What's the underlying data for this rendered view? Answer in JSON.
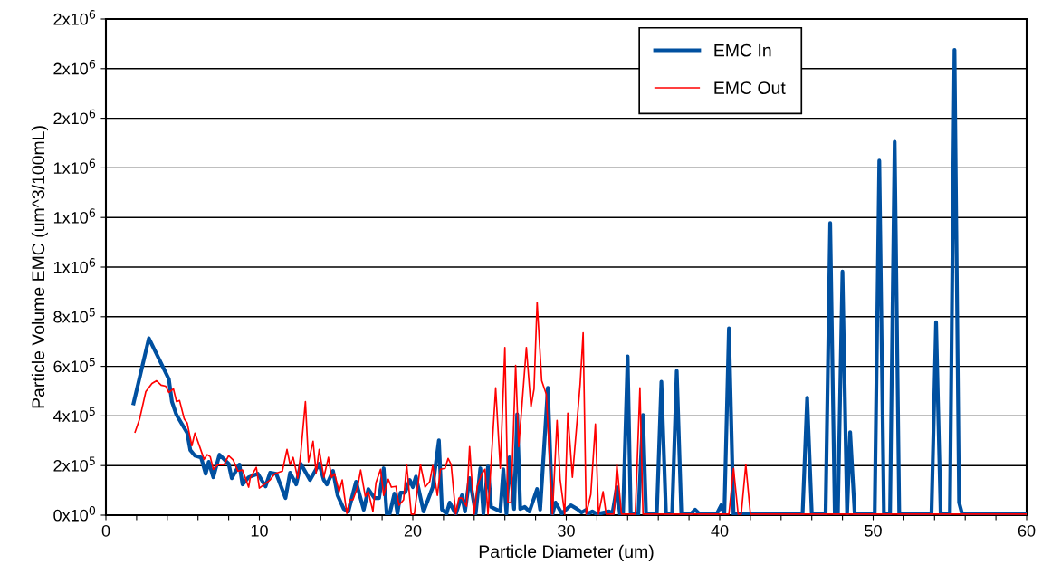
{
  "chart_data": {
    "type": "line",
    "xlabel": "Particle Diameter (um)",
    "ylabel": "Particle Volume EMC (um^3/100mL)",
    "xlim": [
      0,
      60
    ],
    "ylim": [
      0,
      2000000
    ],
    "xticks": [
      0,
      {
        "value": 2,
        "label": null
      },
      {
        "value": 4,
        "label": null
      },
      {
        "value": 6,
        "label": null
      },
      {
        "value": 8,
        "label": null
      },
      10,
      {
        "value": 12,
        "label": null
      },
      {
        "value": 14,
        "label": null
      },
      {
        "value": 16,
        "label": null
      },
      {
        "value": 18,
        "label": null
      },
      20,
      {
        "value": 22,
        "label": null
      },
      {
        "value": 24,
        "label": null
      },
      {
        "value": 26,
        "label": null
      },
      {
        "value": 28,
        "label": null
      },
      30,
      {
        "value": 32,
        "label": null
      },
      {
        "value": 34,
        "label": null
      },
      {
        "value": 36,
        "label": null
      },
      {
        "value": 38,
        "label": null
      },
      40,
      {
        "value": 42,
        "label": null
      },
      {
        "value": 44,
        "label": null
      },
      {
        "value": 46,
        "label": null
      },
      {
        "value": 48,
        "label": null
      },
      50,
      {
        "value": 52,
        "label": null
      },
      {
        "value": 54,
        "label": null
      },
      {
        "value": 56,
        "label": null
      },
      {
        "value": 58,
        "label": null
      },
      60
    ],
    "yticks": [
      {
        "value": 0,
        "label": "0x10$^{0}$"
      },
      {
        "value": 200000,
        "label": "2x10$^{5}$"
      },
      {
        "value": 400000,
        "label": "4x10$^{5}$"
      },
      {
        "value": 600000,
        "label": "6x10$^{5}$"
      },
      {
        "value": 800000,
        "label": "8x10$^{5}$"
      },
      {
        "value": 1000000,
        "label": "1x10$^{6}$"
      },
      {
        "value": 1200000,
        "label": "1x10$^{6}$"
      },
      {
        "value": 1400000,
        "label": "1x10$^{6}$"
      },
      {
        "value": 1600000,
        "label": "2x10$^{6}$"
      },
      {
        "value": 1800000,
        "label": "2x10$^{6}$"
      },
      {
        "value": 2000000,
        "label": "2x10$^{6}$"
      }
    ],
    "grid": "y",
    "legend": "top right",
    "series": [
      {
        "name": "EMC In",
        "color": "#0050a0",
        "x": [
          1.8,
          2.8,
          4.1,
          4.3,
          4.6,
          5.3,
          5.5,
          5.8,
          6.2,
          6.5,
          6.7,
          7.0,
          7.4,
          8.0,
          8.2,
          8.7,
          8.9,
          9.3,
          9.9,
          10.4,
          10.7,
          11.1,
          11.7,
          12.0,
          12.4,
          12.7,
          13.3,
          13.9,
          14.2,
          14.4,
          14.8,
          15.1,
          15.5,
          15.8,
          16.3,
          16.8,
          17.1,
          17.5,
          17.8,
          18.1,
          18.3,
          18.5,
          18.8,
          19.0,
          19.2,
          19.5,
          19.8,
          20.0,
          20.2,
          20.7,
          21.3,
          21.7,
          21.9,
          22.2,
          22.4,
          22.8,
          23.2,
          23.4,
          23.7,
          24.1,
          24.4,
          24.6,
          24.9,
          25.1,
          25.7,
          25.9,
          26.1,
          26.3,
          26.6,
          26.8,
          27.0,
          27.3,
          27.6,
          28.1,
          28.3,
          28.8,
          29.1,
          29.3,
          29.7,
          30.3,
          30.7,
          31.0,
          31.3,
          31.4,
          31.7,
          32.0,
          32.8,
          33.0,
          33.3,
          33.5,
          33.7,
          34.0,
          34.2,
          34.7,
          35.0,
          35.2,
          35.9,
          36.2,
          36.5,
          36.9,
          37.2,
          37.5,
          38.1,
          38.4,
          38.7,
          39.8,
          40.1,
          40.3,
          40.6,
          40.9,
          45.4,
          45.7,
          46.0,
          46.9,
          47.2,
          47.5,
          47.7,
          48.0,
          48.3,
          48.5,
          48.8,
          50.1,
          50.4,
          50.7,
          51.1,
          51.4,
          51.7,
          53.8,
          54.1,
          54.4,
          55.0,
          55.3,
          55.6,
          55.8,
          60
        ],
        "values": [
          451000,
          713000,
          549000,
          458000,
          404000,
          331000,
          262000,
          240000,
          233000,
          167000,
          215000,
          153000,
          244000,
          207000,
          149000,
          204000,
          124000,
          153000,
          167000,
          116000,
          171000,
          167000,
          69000,
          171000,
          124000,
          207000,
          142000,
          207000,
          142000,
          124000,
          178000,
          80000,
          25000,
          15000,
          135000,
          22000,
          105000,
          69000,
          69000,
          189000,
          4000,
          7000,
          87000,
          7000,
          91000,
          91000,
          142000,
          113000,
          156000,
          15000,
          113000,
          302000,
          22000,
          7000,
          51000,
          4000,
          80000,
          15000,
          149000,
          7000,
          189000,
          7000,
          196000,
          33000,
          15000,
          185000,
          7000,
          233000,
          25000,
          407000,
          25000,
          33000,
          15000,
          105000,
          22000,
          513000,
          4000,
          51000,
          7000,
          40000,
          25000,
          11000,
          22000,
          4000,
          15000,
          4000,
          15000,
          4000,
          113000,
          4000,
          4000,
          640000,
          4000,
          4000,
          404000,
          4000,
          4000,
          538000,
          4000,
          4000,
          582000,
          4000,
          4000,
          22000,
          4000,
          4000,
          40000,
          4000,
          753000,
          4000,
          4000,
          473000,
          4000,
          4000,
          1178000,
          4000,
          4000,
          982000,
          4000,
          335000,
          4000,
          4000,
          1429000,
          4000,
          4000,
          1505000,
          4000,
          4000,
          778000,
          4000,
          4000,
          1876000,
          51000,
          4000,
          4000
        ]
      },
      {
        "name": "EMC Out",
        "color": "#ff0000",
        "x": [
          1.9,
          2.2,
          2.6,
          3.0,
          3.3,
          3.6,
          3.9,
          4.1,
          4.4,
          4.6,
          4.8,
          5.1,
          5.3,
          5.6,
          5.8,
          6.4,
          6.6,
          6.8,
          7.0,
          7.3,
          7.7,
          8.0,
          8.3,
          8.6,
          8.9,
          9.3,
          9.4,
          9.8,
          10.0,
          10.7,
          11.0,
          11.5,
          11.8,
          12.0,
          12.2,
          12.5,
          12.7,
          13.0,
          13.2,
          13.5,
          13.7,
          13.9,
          14.2,
          14.5,
          14.7,
          14.9,
          15.2,
          15.4,
          15.7,
          15.9,
          16.1,
          16.4,
          16.6,
          16.9,
          17.1,
          17.4,
          17.6,
          17.9,
          18.1,
          18.4,
          18.6,
          18.9,
          19.1,
          19.4,
          19.6,
          19.9,
          20.1,
          20.5,
          20.8,
          21.1,
          21.3,
          21.6,
          21.8,
          22.1,
          22.3,
          22.5,
          22.8,
          23.0,
          23.2,
          23.5,
          23.7,
          24.0,
          24.2,
          24.5,
          24.7,
          24.9,
          25.4,
          25.7,
          26.0,
          26.2,
          26.4,
          26.7,
          26.9,
          27.1,
          27.4,
          27.7,
          27.9,
          28.1,
          28.4,
          28.7,
          29.1,
          29.4,
          29.6,
          29.9,
          30.1,
          30.4,
          30.9,
          31.1,
          31.3,
          31.6,
          31.9,
          32.1,
          32.4,
          32.6,
          33.1,
          33.3,
          33.6,
          34.5,
          34.8,
          35.0,
          40.6,
          40.9,
          41.2,
          41.4,
          41.7,
          42.0,
          60
        ],
        "values": [
          335000,
          389000,
          498000,
          531000,
          542000,
          524000,
          520000,
          495000,
          509000,
          458000,
          462000,
          389000,
          371000,
          280000,
          331000,
          225000,
          244000,
          236000,
          185000,
          204000,
          204000,
          240000,
          222000,
          178000,
          182000,
          113000,
          149000,
          193000,
          109000,
          142000,
          167000,
          178000,
          265000,
          204000,
          233000,
          149000,
          251000,
          458000,
          215000,
          298000,
          171000,
          265000,
          153000,
          233000,
          153000,
          167000,
          95000,
          142000,
          7000,
          62000,
          62000,
          113000,
          182000,
          76000,
          95000,
          15000,
          131000,
          185000,
          80000,
          145000,
          113000,
          116000,
          40000,
          62000,
          204000,
          4000,
          4000,
          204000,
          113000,
          135000,
          200000,
          80000,
          185000,
          189000,
          229000,
          204000,
          4000,
          69000,
          69000,
          36000,
          276000,
          4000,
          116000,
          167000,
          185000,
          4000,
          513000,
          189000,
          676000,
          51000,
          51000,
          604000,
          276000,
          433000,
          676000,
          436000,
          509000,
          858000,
          542000,
          487000,
          4000,
          382000,
          145000,
          4000,
          411000,
          153000,
          524000,
          735000,
          4000,
          84000,
          367000,
          4000,
          95000,
          4000,
          4000,
          204000,
          4000,
          4000,
          513000,
          4000,
          4000,
          189000,
          4000,
          4000,
          204000,
          4000,
          4000
        ]
      }
    ]
  }
}
